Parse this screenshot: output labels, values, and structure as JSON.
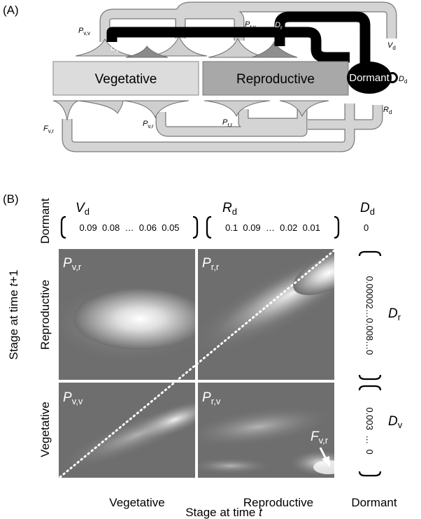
{
  "colors": {
    "vegetative_box": "#dcdcdc",
    "reproductive_box": "#a8a8a8",
    "dormant_node": "#000000",
    "kernel_background": "#6e6e6e",
    "kernel_peak": "#ffffff",
    "one_to_one_line": "#ffffff"
  },
  "panel_a": {
    "label": "(A)",
    "stages": {
      "vegetative": "Vegetative",
      "reproductive": "Reproductive",
      "dormant": "Dormant"
    },
    "transitions": [
      {
        "sym": "P",
        "sub": "v,v"
      },
      {
        "sym": "D",
        "sub": "v"
      },
      {
        "sym": "P",
        "sub": "r,v"
      },
      {
        "sym": "D",
        "sub": "r"
      },
      {
        "sym": "V",
        "sub": "d"
      },
      {
        "sym": "D",
        "sub": "d"
      },
      {
        "sym": "F",
        "sub": "v,r"
      },
      {
        "sym": "P",
        "sub": "v,r"
      },
      {
        "sym": "P",
        "sub": "r,r"
      },
      {
        "sym": "R",
        "sub": "d"
      }
    ]
  },
  "panel_b": {
    "label": "(B)",
    "row_labels": {
      "dormant": "Dormant",
      "reproductive": "Reproductive",
      "vegetative": "Vegetative"
    },
    "col_labels": {
      "vegetative": "Vegetative",
      "reproductive": "Reproductive",
      "dormant": "Dormant"
    },
    "x_axis_title": "Stage at time ",
    "x_axis_var": "t",
    "y_axis_title": "Stage at time ",
    "y_axis_var": "t",
    "y_axis_suffix": "+1",
    "vd": {
      "sym": "V",
      "sub": "d",
      "values": "0.09  0.08  …  0.06  0.05"
    },
    "rd": {
      "sym": "R",
      "sub": "d",
      "values": "0.1  0.09  …  0.02  0.01"
    },
    "dd": {
      "sym": "D",
      "sub": "d",
      "value": "0"
    },
    "dr": {
      "sym": "D",
      "sub": "r",
      "values": "0.00002…0.008…0"
    },
    "dv": {
      "sym": "D",
      "sub": "v",
      "values": "0.003  …  0"
    },
    "kernels": [
      {
        "sym": "P",
        "sub": "v,r"
      },
      {
        "sym": "P",
        "sub": "r,r"
      },
      {
        "sym": "P",
        "sub": "v,v"
      },
      {
        "sym": "P",
        "sub": "r,v"
      }
    ],
    "fecundity_arrow": {
      "sym": "F",
      "sub": "v,r"
    }
  }
}
